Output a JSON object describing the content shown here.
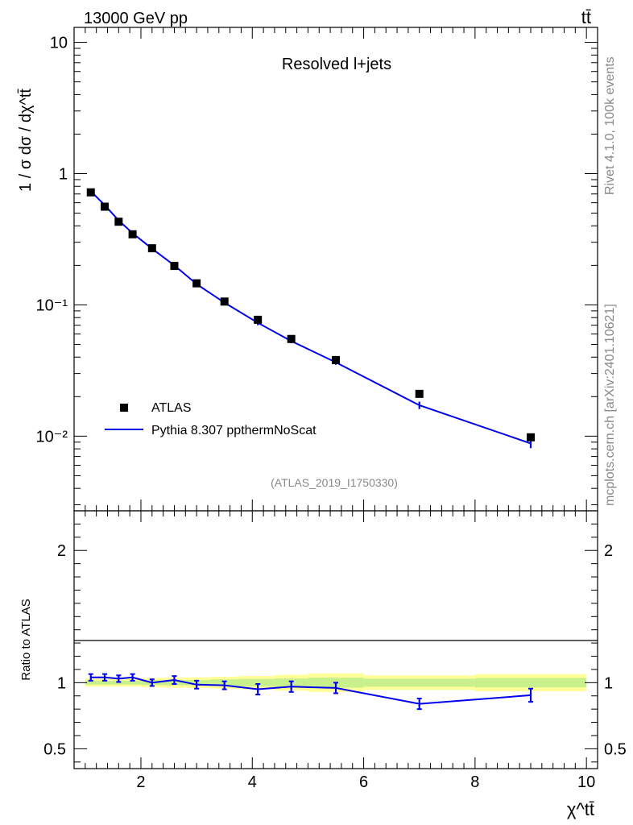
{
  "header": {
    "left_title": "13000 GeV pp",
    "right_title": "tt̄"
  },
  "side_labels": {
    "rivet": "Rivet 4.1.0,  100k events",
    "mcplots": "mcplots.cern.ch [arXiv:2401.10621]"
  },
  "chart_data": [
    {
      "type": "scatter",
      "panel": "main",
      "title": "Resolved l+jets",
      "watermark": "(ATLAS_2019_I1750330)",
      "ylabel": "1 / σ dσ / dχ^tt̄",
      "yscale": "log",
      "ylim": [
        0.0027,
        13
      ],
      "xlim": [
        0.8,
        10.2
      ],
      "ytick_labels": [
        "10",
        "1",
        "10⁻¹",
        "10⁻²"
      ],
      "ytick_values": [
        10,
        1,
        0.1,
        0.01
      ],
      "legend_position": "lower-left",
      "series": [
        {
          "name": "ATLAS",
          "style": "markers",
          "color": "#000000",
          "x": [
            1.1,
            1.35,
            1.6,
            1.85,
            2.2,
            2.6,
            3.0,
            3.5,
            4.1,
            4.7,
            5.5,
            7.0,
            9.0
          ],
          "values": [
            0.72,
            0.56,
            0.43,
            0.345,
            0.27,
            0.198,
            0.146,
            0.106,
            0.077,
            0.055,
            0.038,
            0.021,
            0.0098
          ]
        },
        {
          "name": "Pythia 8.307 ppthermNoScat",
          "style": "line",
          "color": "#0000ee",
          "x": [
            1.1,
            1.35,
            1.6,
            1.85,
            2.2,
            2.6,
            3.0,
            3.5,
            4.1,
            4.7,
            5.5,
            7.0,
            9.0
          ],
          "values": [
            0.735,
            0.575,
            0.44,
            0.352,
            0.268,
            0.2,
            0.144,
            0.104,
            0.073,
            0.053,
            0.0365,
            0.0172,
            0.0088
          ],
          "err": [
            0.018,
            0.014,
            0.011,
            0.009,
            0.007,
            0.005,
            0.004,
            0.003,
            0.003,
            0.002,
            0.0015,
            0.0011,
            0.0007
          ]
        }
      ]
    },
    {
      "type": "line",
      "panel": "ratio",
      "ylabel": "Ratio to ATLAS",
      "xlabel": "χ^tt̄",
      "ylim": [
        0.35,
        2.3
      ],
      "xlim": [
        0.8,
        10.2
      ],
      "ytick_labels": [
        "0.5",
        "1",
        "2"
      ],
      "ytick_values": [
        0.5,
        1,
        2
      ],
      "xtick_labels": [
        "2",
        "4",
        "6",
        "8",
        "10"
      ],
      "xtick_values": [
        2,
        4,
        6,
        8,
        10
      ],
      "reference_band": {
        "edges": [
          1.0,
          1.25,
          1.5,
          1.75,
          2.0,
          2.4,
          2.8,
          3.25,
          3.75,
          4.4,
          5.0,
          6.0,
          8.0,
          10.0
        ],
        "inner": [
          0.015,
          0.015,
          0.015,
          0.015,
          0.018,
          0.02,
          0.02,
          0.025,
          0.028,
          0.032,
          0.038,
          0.03,
          0.035
        ],
        "outer": [
          0.03,
          0.03,
          0.03,
          0.03,
          0.035,
          0.038,
          0.04,
          0.045,
          0.05,
          0.06,
          0.07,
          0.055,
          0.065
        ]
      },
      "series": [
        {
          "name": "Pythia 8.307 ppthermNoScat",
          "color": "#0000ee",
          "x": [
            1.1,
            1.35,
            1.6,
            1.85,
            2.2,
            2.6,
            3.0,
            3.5,
            4.1,
            4.7,
            5.5,
            7.0,
            9.0
          ],
          "values": [
            1.04,
            1.04,
            1.03,
            1.04,
            1.0,
            1.02,
            0.985,
            0.98,
            0.95,
            0.97,
            0.96,
            0.84,
            0.905
          ],
          "err": [
            0.025,
            0.025,
            0.025,
            0.025,
            0.025,
            0.03,
            0.03,
            0.03,
            0.04,
            0.04,
            0.04,
            0.04,
            0.05
          ]
        }
      ]
    }
  ]
}
